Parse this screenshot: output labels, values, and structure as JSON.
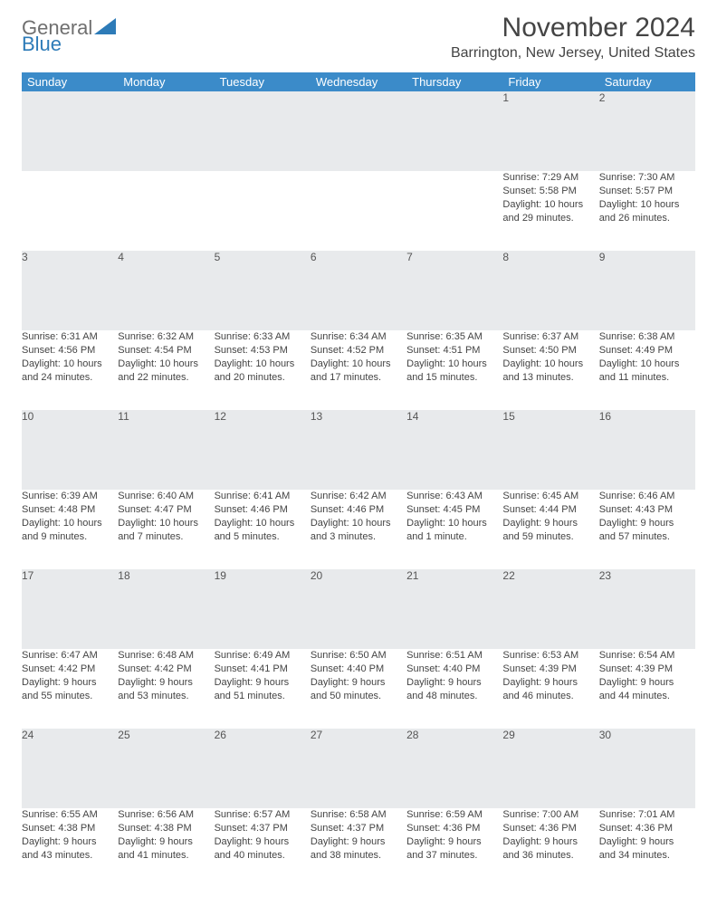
{
  "logo": {
    "word1": "General",
    "word2": "Blue"
  },
  "title": "November 2024",
  "location": "Barrington, New Jersey, United States",
  "header_text_color": "#444444",
  "header_bg": "#3b8bc9",
  "daynum_bg": "#e8eaec",
  "rule_color": "#3b6a93",
  "body_text_color": "#444444",
  "font_family": "Arial, Helvetica, sans-serif",
  "day_headers": [
    "Sunday",
    "Monday",
    "Tuesday",
    "Wednesday",
    "Thursday",
    "Friday",
    "Saturday"
  ],
  "weeks": [
    {
      "nums": [
        "",
        "",
        "",
        "",
        "",
        "1",
        "2"
      ],
      "cells": [
        {
          "sunrise": "",
          "sunset": "",
          "daylight1": "",
          "daylight2": ""
        },
        {
          "sunrise": "",
          "sunset": "",
          "daylight1": "",
          "daylight2": ""
        },
        {
          "sunrise": "",
          "sunset": "",
          "daylight1": "",
          "daylight2": ""
        },
        {
          "sunrise": "",
          "sunset": "",
          "daylight1": "",
          "daylight2": ""
        },
        {
          "sunrise": "",
          "sunset": "",
          "daylight1": "",
          "daylight2": ""
        },
        {
          "sunrise": "Sunrise: 7:29 AM",
          "sunset": "Sunset: 5:58 PM",
          "daylight1": "Daylight: 10 hours",
          "daylight2": "and 29 minutes."
        },
        {
          "sunrise": "Sunrise: 7:30 AM",
          "sunset": "Sunset: 5:57 PM",
          "daylight1": "Daylight: 10 hours",
          "daylight2": "and 26 minutes."
        }
      ]
    },
    {
      "nums": [
        "3",
        "4",
        "5",
        "6",
        "7",
        "8",
        "9"
      ],
      "cells": [
        {
          "sunrise": "Sunrise: 6:31 AM",
          "sunset": "Sunset: 4:56 PM",
          "daylight1": "Daylight: 10 hours",
          "daylight2": "and 24 minutes."
        },
        {
          "sunrise": "Sunrise: 6:32 AM",
          "sunset": "Sunset: 4:54 PM",
          "daylight1": "Daylight: 10 hours",
          "daylight2": "and 22 minutes."
        },
        {
          "sunrise": "Sunrise: 6:33 AM",
          "sunset": "Sunset: 4:53 PM",
          "daylight1": "Daylight: 10 hours",
          "daylight2": "and 20 minutes."
        },
        {
          "sunrise": "Sunrise: 6:34 AM",
          "sunset": "Sunset: 4:52 PM",
          "daylight1": "Daylight: 10 hours",
          "daylight2": "and 17 minutes."
        },
        {
          "sunrise": "Sunrise: 6:35 AM",
          "sunset": "Sunset: 4:51 PM",
          "daylight1": "Daylight: 10 hours",
          "daylight2": "and 15 minutes."
        },
        {
          "sunrise": "Sunrise: 6:37 AM",
          "sunset": "Sunset: 4:50 PM",
          "daylight1": "Daylight: 10 hours",
          "daylight2": "and 13 minutes."
        },
        {
          "sunrise": "Sunrise: 6:38 AM",
          "sunset": "Sunset: 4:49 PM",
          "daylight1": "Daylight: 10 hours",
          "daylight2": "and 11 minutes."
        }
      ]
    },
    {
      "nums": [
        "10",
        "11",
        "12",
        "13",
        "14",
        "15",
        "16"
      ],
      "cells": [
        {
          "sunrise": "Sunrise: 6:39 AM",
          "sunset": "Sunset: 4:48 PM",
          "daylight1": "Daylight: 10 hours",
          "daylight2": "and 9 minutes."
        },
        {
          "sunrise": "Sunrise: 6:40 AM",
          "sunset": "Sunset: 4:47 PM",
          "daylight1": "Daylight: 10 hours",
          "daylight2": "and 7 minutes."
        },
        {
          "sunrise": "Sunrise: 6:41 AM",
          "sunset": "Sunset: 4:46 PM",
          "daylight1": "Daylight: 10 hours",
          "daylight2": "and 5 minutes."
        },
        {
          "sunrise": "Sunrise: 6:42 AM",
          "sunset": "Sunset: 4:46 PM",
          "daylight1": "Daylight: 10 hours",
          "daylight2": "and 3 minutes."
        },
        {
          "sunrise": "Sunrise: 6:43 AM",
          "sunset": "Sunset: 4:45 PM",
          "daylight1": "Daylight: 10 hours",
          "daylight2": "and 1 minute."
        },
        {
          "sunrise": "Sunrise: 6:45 AM",
          "sunset": "Sunset: 4:44 PM",
          "daylight1": "Daylight: 9 hours",
          "daylight2": "and 59 minutes."
        },
        {
          "sunrise": "Sunrise: 6:46 AM",
          "sunset": "Sunset: 4:43 PM",
          "daylight1": "Daylight: 9 hours",
          "daylight2": "and 57 minutes."
        }
      ]
    },
    {
      "nums": [
        "17",
        "18",
        "19",
        "20",
        "21",
        "22",
        "23"
      ],
      "cells": [
        {
          "sunrise": "Sunrise: 6:47 AM",
          "sunset": "Sunset: 4:42 PM",
          "daylight1": "Daylight: 9 hours",
          "daylight2": "and 55 minutes."
        },
        {
          "sunrise": "Sunrise: 6:48 AM",
          "sunset": "Sunset: 4:42 PM",
          "daylight1": "Daylight: 9 hours",
          "daylight2": "and 53 minutes."
        },
        {
          "sunrise": "Sunrise: 6:49 AM",
          "sunset": "Sunset: 4:41 PM",
          "daylight1": "Daylight: 9 hours",
          "daylight2": "and 51 minutes."
        },
        {
          "sunrise": "Sunrise: 6:50 AM",
          "sunset": "Sunset: 4:40 PM",
          "daylight1": "Daylight: 9 hours",
          "daylight2": "and 50 minutes."
        },
        {
          "sunrise": "Sunrise: 6:51 AM",
          "sunset": "Sunset: 4:40 PM",
          "daylight1": "Daylight: 9 hours",
          "daylight2": "and 48 minutes."
        },
        {
          "sunrise": "Sunrise: 6:53 AM",
          "sunset": "Sunset: 4:39 PM",
          "daylight1": "Daylight: 9 hours",
          "daylight2": "and 46 minutes."
        },
        {
          "sunrise": "Sunrise: 6:54 AM",
          "sunset": "Sunset: 4:39 PM",
          "daylight1": "Daylight: 9 hours",
          "daylight2": "and 44 minutes."
        }
      ]
    },
    {
      "nums": [
        "24",
        "25",
        "26",
        "27",
        "28",
        "29",
        "30"
      ],
      "cells": [
        {
          "sunrise": "Sunrise: 6:55 AM",
          "sunset": "Sunset: 4:38 PM",
          "daylight1": "Daylight: 9 hours",
          "daylight2": "and 43 minutes."
        },
        {
          "sunrise": "Sunrise: 6:56 AM",
          "sunset": "Sunset: 4:38 PM",
          "daylight1": "Daylight: 9 hours",
          "daylight2": "and 41 minutes."
        },
        {
          "sunrise": "Sunrise: 6:57 AM",
          "sunset": "Sunset: 4:37 PM",
          "daylight1": "Daylight: 9 hours",
          "daylight2": "and 40 minutes."
        },
        {
          "sunrise": "Sunrise: 6:58 AM",
          "sunset": "Sunset: 4:37 PM",
          "daylight1": "Daylight: 9 hours",
          "daylight2": "and 38 minutes."
        },
        {
          "sunrise": "Sunrise: 6:59 AM",
          "sunset": "Sunset: 4:36 PM",
          "daylight1": "Daylight: 9 hours",
          "daylight2": "and 37 minutes."
        },
        {
          "sunrise": "Sunrise: 7:00 AM",
          "sunset": "Sunset: 4:36 PM",
          "daylight1": "Daylight: 9 hours",
          "daylight2": "and 36 minutes."
        },
        {
          "sunrise": "Sunrise: 7:01 AM",
          "sunset": "Sunset: 4:36 PM",
          "daylight1": "Daylight: 9 hours",
          "daylight2": "and 34 minutes."
        }
      ]
    }
  ]
}
